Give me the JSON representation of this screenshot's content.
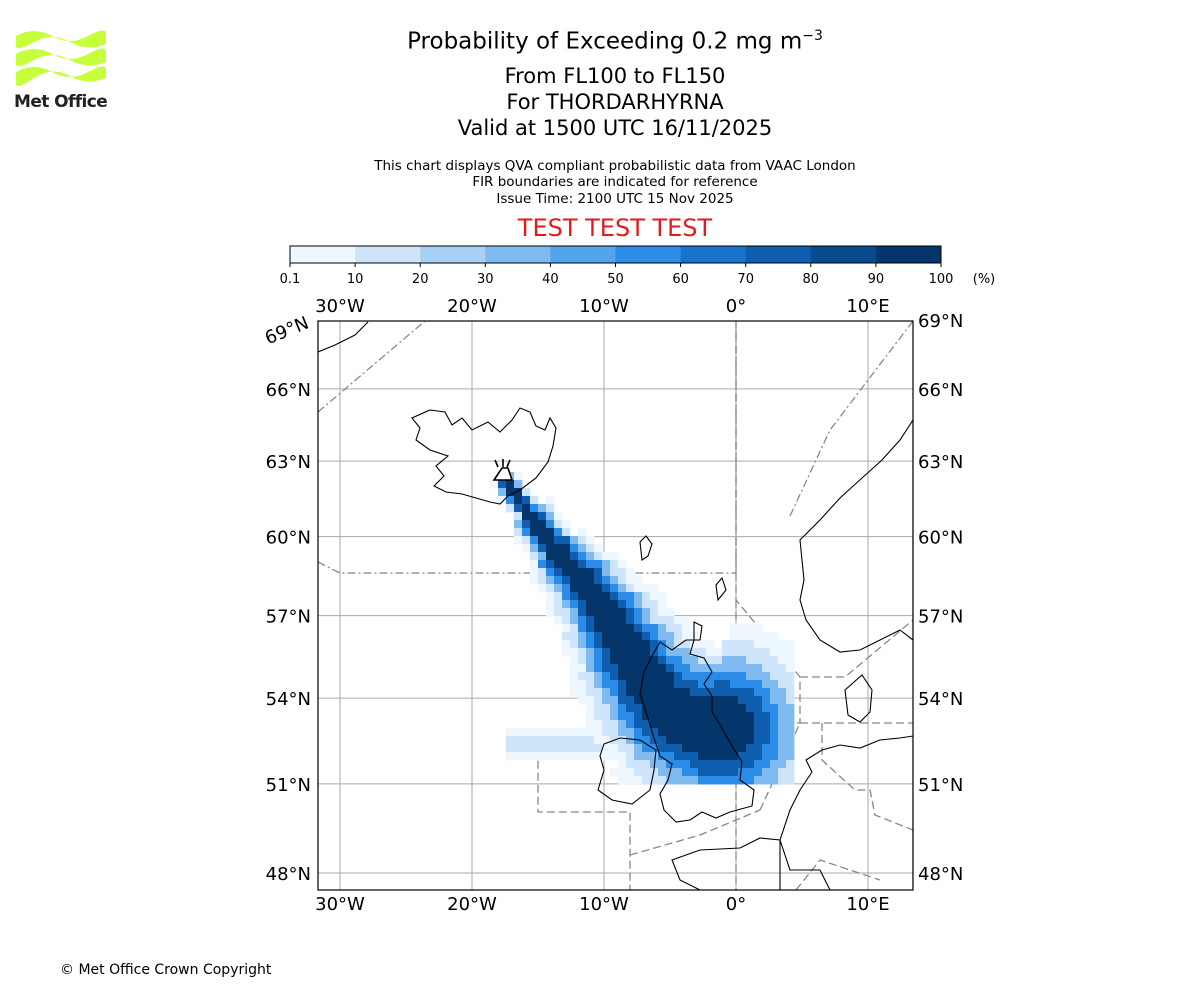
{
  "logo": {
    "text": "Met Office"
  },
  "header": {
    "title_main": "Probability of Exceeding 0.2 mg m",
    "title_exponent": "−3",
    "flight_levels": "From FL100 to FL150",
    "volcano": "For THORDARHYRNA",
    "valid_time": "Valid at 1500 UTC 16/11/2025"
  },
  "notes": {
    "line1": "This chart displays QVA compliant probabilistic data from VAAC London",
    "line2": "FIR boundaries are indicated for reference",
    "line3": "Issue Time: 2100 UTC 15 Nov 2025"
  },
  "test_banner": "TEST TEST TEST",
  "colorbar": {
    "ticks": [
      "0.1",
      "10",
      "20",
      "30",
      "40",
      "50",
      "60",
      "70",
      "80",
      "90",
      "100"
    ],
    "unit": "(%)",
    "colors": [
      "#eef6fe",
      "#cde4f9",
      "#a8d0f5",
      "#7fbaf1",
      "#52a4ec",
      "#2a8ce6",
      "#1873cc",
      "#0f5eaf",
      "#0a4a8e",
      "#05366b",
      "#022852"
    ]
  },
  "map": {
    "lon_ticks": [
      "30°W",
      "20°W",
      "10°W",
      "0°",
      "10°E"
    ],
    "lat_ticks": [
      "69°N",
      "66°N",
      "63°N",
      "60°N",
      "57°N",
      "54°N",
      "51°N",
      "48°N"
    ],
    "lon_values": [
      -30,
      -20,
      -10,
      0,
      10
    ],
    "lat_values": [
      69,
      66,
      63,
      60,
      57,
      54,
      51,
      48
    ]
  },
  "footer": {
    "copyright": "© Met Office Crown Copyright"
  }
}
